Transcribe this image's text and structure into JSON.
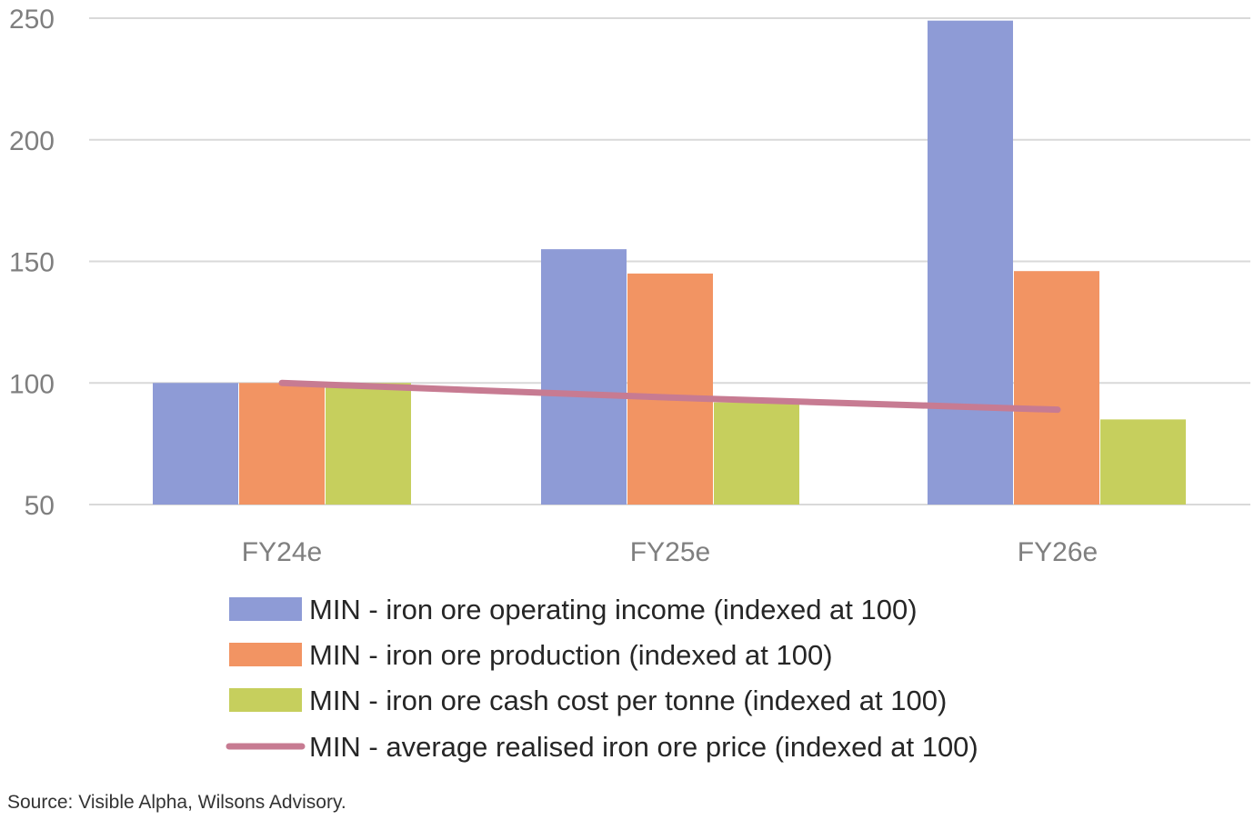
{
  "chart_data": {
    "type": "bar",
    "categories": [
      "FY24e",
      "FY25e",
      "FY26e"
    ],
    "series": [
      {
        "name": "MIN - iron ore operating income (indexed at 100)",
        "kind": "bar",
        "color": "#8e9bd6",
        "values": [
          100,
          155,
          249
        ]
      },
      {
        "name": "MIN - iron ore production (indexed at 100)",
        "kind": "bar",
        "color": "#f29463",
        "values": [
          100,
          145,
          146
        ]
      },
      {
        "name": "MIN - iron ore cash cost per tonne (indexed at 100)",
        "kind": "bar",
        "color": "#c6cf5d",
        "values": [
          100,
          92,
          85
        ]
      },
      {
        "name": "MIN - average realised iron ore price (indexed at 100)",
        "kind": "line",
        "color": "#c77b92",
        "values": [
          100,
          94,
          89
        ]
      }
    ],
    "y_ticks": [
      "50",
      "100",
      "150",
      "200",
      "250"
    ],
    "ylim": [
      50,
      250
    ],
    "grid": true,
    "legend_position": "bottom",
    "source": "Source: Visible Alpha, Wilsons Advisory."
  }
}
